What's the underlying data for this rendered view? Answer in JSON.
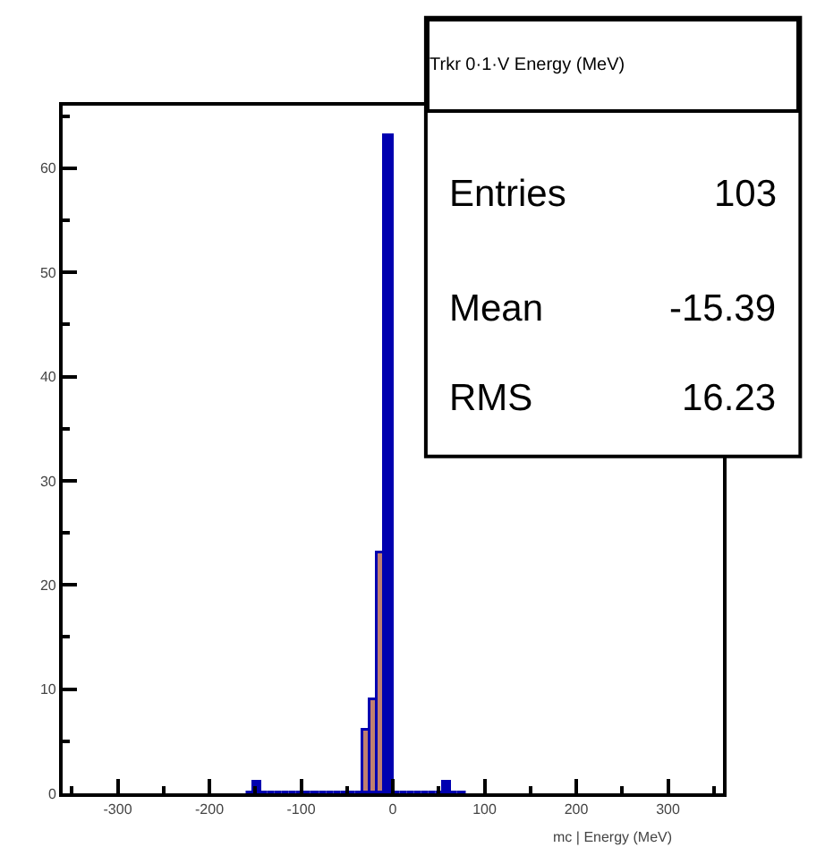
{
  "chart_data": {
    "type": "histogram",
    "title": "Trkr 0·1·V Energy (MeV)",
    "xlabel": "mc | Energy (MeV)",
    "bins": [
      -160,
      -152,
      -144,
      -136,
      -128,
      -120,
      -112,
      -104,
      -96,
      -88,
      -80,
      -72,
      -64,
      -56,
      -48,
      -40,
      -32,
      -24,
      -16,
      -8,
      0,
      8,
      16,
      24,
      32,
      40,
      48,
      56,
      64,
      72,
      80
    ],
    "series": [
      {
        "color": "#0000b0",
        "values": [
          0,
          1,
          0,
          0,
          0,
          0,
          0,
          0,
          0,
          0,
          0,
          0,
          0,
          0,
          0,
          0,
          6,
          9,
          23,
          63,
          0,
          0,
          0,
          0,
          0,
          0,
          0,
          1,
          0,
          0
        ],
        "colors": [
          "#0000b0",
          "#0000b0",
          "#0000b0",
          "#0000b0",
          "#0000b0",
          "#0000b0",
          "#0000b0",
          "#0000b0",
          "#0000b0",
          "#0000b0",
          "#0000b0",
          "#0000b0",
          "#0000b0",
          "#0000b0",
          "#0000b0",
          "#0000b0",
          "#c08070",
          "#c08070",
          "#c08070",
          "#0000b0",
          "#0000b0",
          "#0000b0",
          "#0000b0",
          "#0000b0",
          "#0000b0",
          "#0000b0",
          "#0000b0",
          "#0000b0",
          "#0000b0",
          "#0000b0"
        ]
      }
    ],
    "xlim": [
      -360,
      360
    ],
    "xticks": [
      -300,
      -200,
      -100,
      0,
      100,
      200,
      300
    ],
    "ylim": [
      0,
      66
    ],
    "yticks": [
      0,
      10,
      20,
      30,
      40,
      50,
      60
    ],
    "annotations": [
      "Entries",
      "103",
      "Mean",
      "-15.39",
      "RMS",
      "16.23"
    ]
  }
}
